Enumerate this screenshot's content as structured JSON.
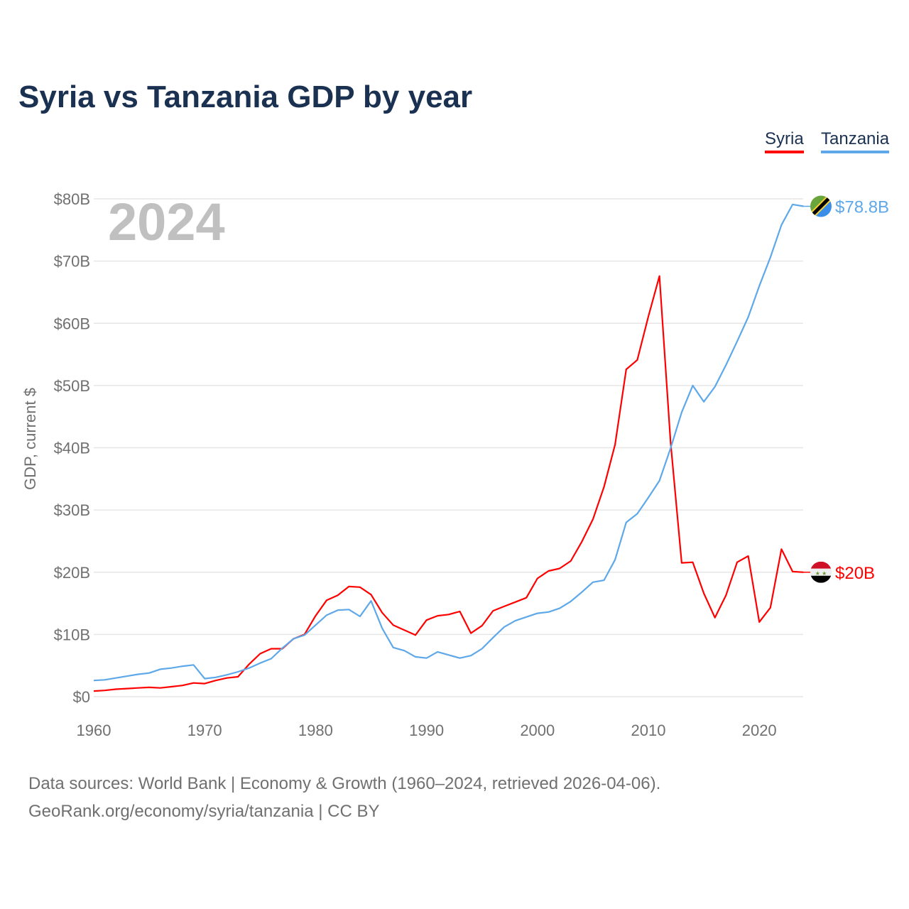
{
  "title": "Syria vs Tanzania GDP by year",
  "footer": {
    "line1": "Data sources: World Bank | Economy & Growth (1960–2024, retrieved 2026-04-06).",
    "line2": "GeoRank.org/economy/syria/tanzania | CC BY"
  },
  "chart_data": {
    "type": "line",
    "title": "Syria vs Tanzania GDP by year",
    "ylabel": "GDP, current $",
    "xlabel": "",
    "year_watermark": "2024",
    "xlim": [
      1960,
      2024
    ],
    "ylim": [
      0,
      80
    ],
    "x_ticks": [
      1960,
      1970,
      1980,
      1990,
      2000,
      2010,
      2020
    ],
    "x_tick_labels": [
      "1960",
      "1970",
      "1980",
      "1990",
      "2000",
      "2010",
      "2020"
    ],
    "y_ticks": [
      0,
      10,
      20,
      30,
      40,
      50,
      60,
      70,
      80
    ],
    "y_tick_labels": [
      "$0",
      "$10B",
      "$20B",
      "$30B",
      "$40B",
      "$50B",
      "$60B",
      "$70B",
      "$80B"
    ],
    "grid": true,
    "legend_position": "top-right",
    "series": [
      {
        "name": "Syria",
        "color": "#ff0000",
        "end_label": "$20B",
        "flag": "syria-flag",
        "values": [
          0.9,
          1.0,
          1.2,
          1.3,
          1.4,
          1.5,
          1.4,
          1.6,
          1.8,
          2.2,
          2.1,
          2.6,
          3.0,
          3.2,
          5.2,
          6.9,
          7.7,
          7.7,
          9.3,
          10.0,
          13.0,
          15.5,
          16.3,
          17.7,
          17.6,
          16.4,
          13.5,
          11.5,
          10.7,
          9.9,
          12.3,
          13.0,
          13.2,
          13.7,
          10.2,
          11.4,
          13.8,
          14.5,
          15.2,
          15.9,
          19.0,
          20.2,
          20.6,
          21.8,
          24.9,
          28.5,
          33.7,
          40.5,
          52.6,
          54.1,
          61.1,
          67.6,
          41.0,
          21.5,
          21.6,
          16.6,
          12.7,
          16.3,
          21.6,
          22.6,
          12.0,
          14.3,
          23.7,
          20.1,
          20.0
        ]
      },
      {
        "name": "Tanzania",
        "color": "#5ea8ea",
        "end_label": "$78.8B",
        "flag": "tanzania-flag",
        "values": [
          2.6,
          2.7,
          3.0,
          3.3,
          3.6,
          3.8,
          4.4,
          4.6,
          4.9,
          5.1,
          2.9,
          3.1,
          3.5,
          4.0,
          4.6,
          5.4,
          6.1,
          7.8,
          9.3,
          9.9,
          11.5,
          13.1,
          13.9,
          14.0,
          12.9,
          15.4,
          11.0,
          7.9,
          7.4,
          6.4,
          6.2,
          7.2,
          6.7,
          6.2,
          6.6,
          7.7,
          9.5,
          11.2,
          12.2,
          12.8,
          13.4,
          13.6,
          14.2,
          15.3,
          16.8,
          18.4,
          18.7,
          22.0,
          28.0,
          29.4,
          32.0,
          34.7,
          39.9,
          45.7,
          50.0,
          47.4,
          49.8,
          53.3,
          57.1,
          61.0,
          66.0,
          70.6,
          75.8,
          79.1,
          78.8
        ]
      }
    ]
  }
}
